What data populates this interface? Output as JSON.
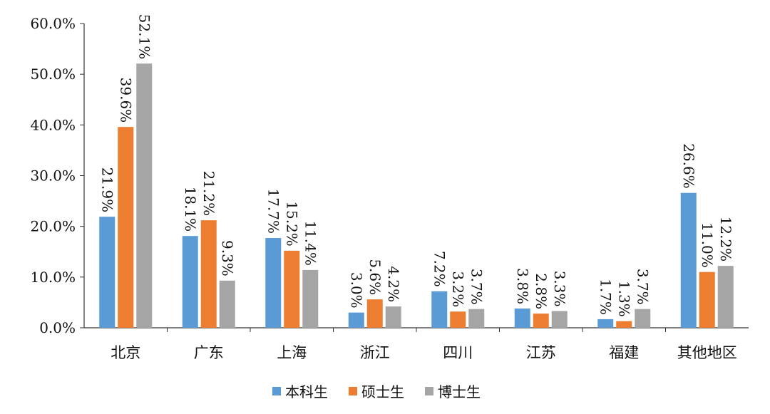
{
  "chart_data": {
    "type": "bar",
    "categories": [
      "北京",
      "广东",
      "上海",
      "浙江",
      "四川",
      "江苏",
      "福建",
      "其他地区"
    ],
    "series": [
      {
        "name": "本科生",
        "color": "#5B9BD5",
        "values": [
          21.9,
          18.1,
          17.7,
          3.0,
          7.2,
          3.8,
          1.7,
          26.6
        ]
      },
      {
        "name": "硕士生",
        "color": "#ED7D31",
        "values": [
          39.6,
          21.2,
          15.2,
          5.6,
          3.2,
          2.8,
          1.3,
          11.0
        ]
      },
      {
        "name": "博士生",
        "color": "#A5A5A5",
        "values": [
          52.1,
          9.3,
          11.4,
          4.2,
          3.7,
          3.3,
          3.7,
          12.2
        ]
      }
    ],
    "ylim": [
      0,
      60
    ],
    "yticks": [
      "0.0%",
      "10.0%",
      "20.0%",
      "30.0%",
      "40.0%",
      "50.0%",
      "60.0%"
    ],
    "value_format": "percent-1dp",
    "grid": false,
    "legend": "bottom"
  }
}
